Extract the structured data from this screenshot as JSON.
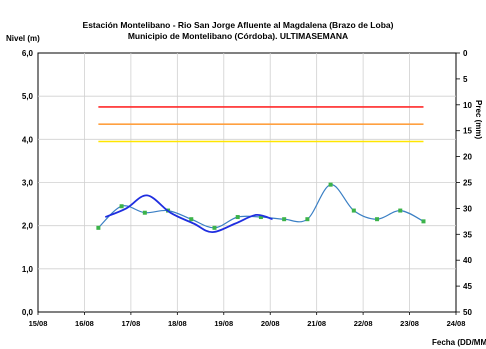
{
  "chart_data": {
    "type": "line",
    "title": "Estación Montelibano  - Rio San Jorge Afluente al Magdalena (Brazo de Loba)",
    "subtitle": "Municipio de Montelibano (Córdoba). ULTIMASEMANA",
    "ylabel": "Nivel (m)",
    "y2label": "Prec (mm)",
    "xlabel": "Fecha (DD/MM/AA)",
    "ylim": [
      0,
      6
    ],
    "y2lim": [
      0,
      50
    ],
    "y2_reversed": true,
    "yticks": [
      "0,0",
      "1,0",
      "2,0",
      "3,0",
      "4,0",
      "5,0",
      "6,0"
    ],
    "y2ticks": [
      "0",
      "5",
      "10",
      "15",
      "20",
      "25",
      "30",
      "35",
      "40",
      "45",
      "50"
    ],
    "xticks": [
      "15/08",
      "16/08",
      "17/08",
      "18/08",
      "19/08",
      "20/08",
      "21/08",
      "22/08",
      "23/08",
      "24/08"
    ],
    "xlim": [
      0,
      9
    ],
    "grid": true,
    "thresholds": [
      {
        "level": 4.75,
        "color": "#ff2a2a"
      },
      {
        "level": 4.35,
        "color": "#ffa040"
      },
      {
        "level": 3.95,
        "color": "#ffe600"
      }
    ],
    "series": [
      {
        "color": "#3a7fc4",
        "marker_color": "#3cb34a",
        "x": [
          1.3,
          1.8,
          2.3,
          2.8,
          3.3,
          3.8,
          4.3,
          4.8,
          5.3,
          5.8,
          6.3,
          6.8,
          7.3,
          7.8,
          8.3
        ],
        "values": [
          1.95,
          2.45,
          2.3,
          2.35,
          2.15,
          1.95,
          2.2,
          2.2,
          2.15,
          2.15,
          2.95,
          2.35,
          2.15,
          2.35,
          2.1
        ]
      },
      {
        "color": "#1f2ee0",
        "x": [
          1.45,
          1.9,
          2.35,
          2.85,
          3.35,
          3.75,
          4.25,
          4.7,
          5.05
        ],
        "values": [
          2.2,
          2.4,
          2.7,
          2.3,
          2.05,
          1.85,
          2.05,
          2.25,
          2.15
        ]
      }
    ]
  }
}
